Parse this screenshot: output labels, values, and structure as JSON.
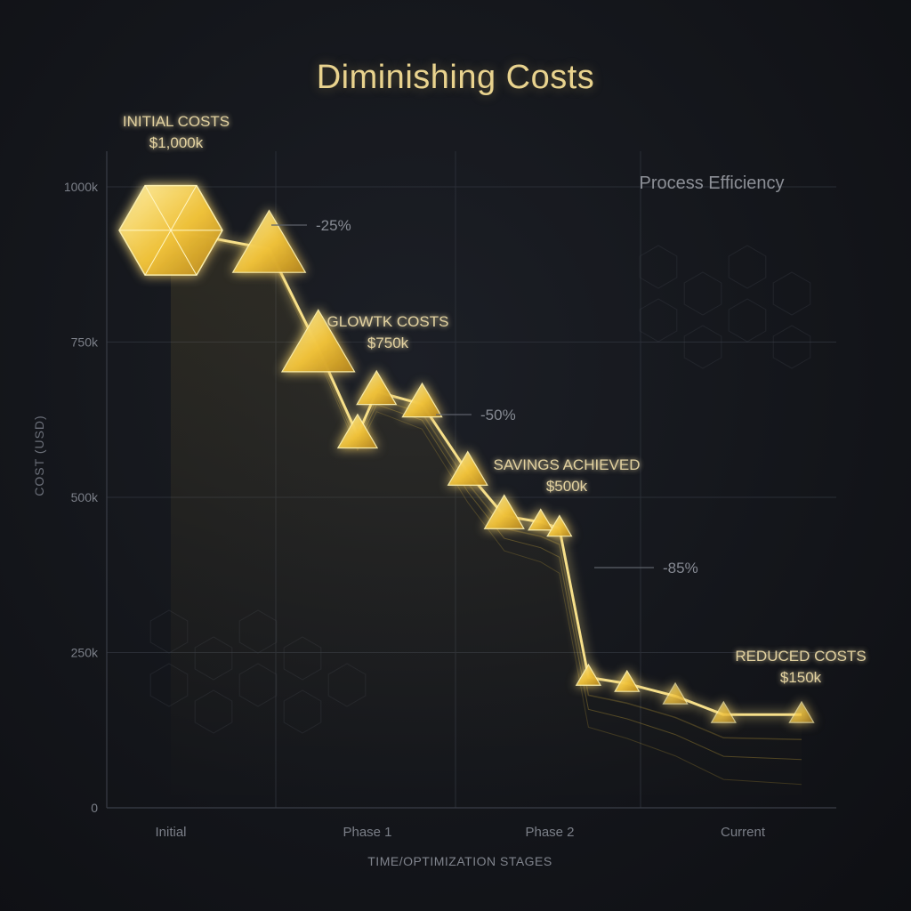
{
  "chart_data": {
    "type": "line",
    "title": "Diminishing Costs",
    "xlabel": "TIME/OPTIMIZATION STAGES",
    "ylabel": "COST (USD)",
    "categories": [
      "Initial",
      "Phase 1",
      "Phase 2",
      "Current"
    ],
    "yticks": [
      "0",
      "250k",
      "500k",
      "750k",
      "1000k"
    ],
    "ylim": [
      0,
      1000
    ],
    "grid": true,
    "series": [
      {
        "x": [
          0,
          0.5,
          0.75,
          0.95,
          1.05,
          1.3,
          1.55,
          1.75,
          1.95,
          2.05,
          2.2,
          2.4,
          2.65,
          2.9,
          3.3
        ],
        "values": [
          930,
          900,
          740,
          600,
          670,
          650,
          540,
          470,
          460,
          450,
          210,
          200,
          180,
          150,
          150
        ]
      }
    ],
    "annotations": [
      {
        "label": "INITIAL COSTS",
        "value": "$1,000k"
      },
      {
        "label": "GLOWTK COSTS",
        "value": "$750k"
      },
      {
        "label": "SAVINGS ACHIEVED",
        "value": "$500k"
      },
      {
        "label": "REDUCED COSTS",
        "value": "$150k"
      }
    ],
    "percent_labels": [
      "-25%",
      "-50%",
      "-85%"
    ],
    "inset_label": "Process Efficiency"
  },
  "colors": {
    "gold": "#f2c640",
    "gold_light": "#f7e08a",
    "label": "#e3d2a0",
    "axis_text": "#7b7f88",
    "grid": "#2a2e36"
  }
}
